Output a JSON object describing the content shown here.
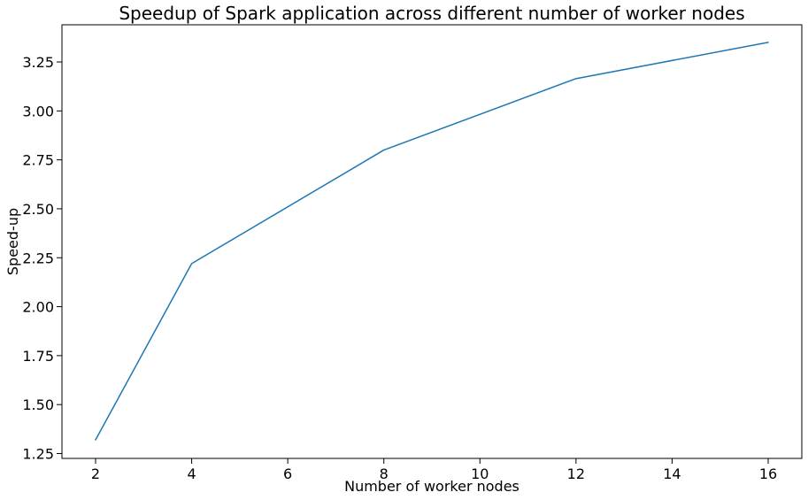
{
  "chart_data": {
    "type": "line",
    "title": "Speedup of Spark application across different number of worker nodes",
    "xlabel": "Number of worker nodes",
    "ylabel": "Speed-up",
    "x": [
      2,
      4,
      8,
      12,
      16
    ],
    "series": [
      {
        "values": [
          1.32,
          2.22,
          2.8,
          3.165,
          3.35
        ],
        "color": "#1f77b4"
      }
    ],
    "xlim": [
      1.3,
      16.7
    ],
    "ylim": [
      1.225,
      3.44
    ],
    "xticks": [
      2,
      4,
      6,
      8,
      10,
      12,
      14,
      16
    ],
    "xtick_labels": [
      "2",
      "4",
      "6",
      "8",
      "10",
      "12",
      "14",
      "16"
    ],
    "yticks": [
      1.25,
      1.5,
      1.75,
      2.0,
      2.25,
      2.5,
      2.75,
      3.0,
      3.25
    ],
    "ytick_labels": [
      "1.25",
      "1.50",
      "1.75",
      "2.00",
      "2.25",
      "2.50",
      "2.75",
      "3.00",
      "3.25"
    ],
    "grid": false,
    "legend": "none"
  }
}
